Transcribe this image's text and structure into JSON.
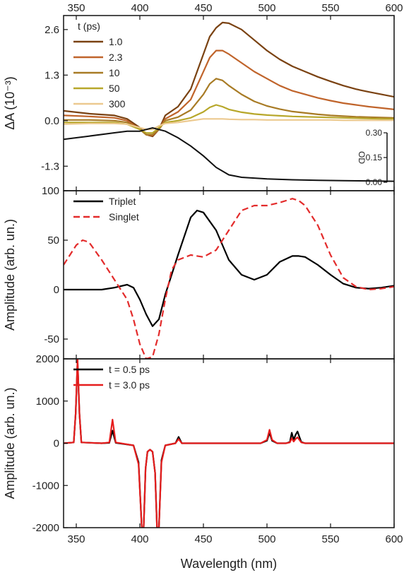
{
  "chart_data": [
    {
      "type": "line",
      "panel": "top",
      "xlabel": "Wavelength (nm)",
      "ylabel": "ΔA (10⁻³)",
      "xlim": [
        340,
        600
      ],
      "ylim": [
        -2.0,
        3.0
      ],
      "x_ticks": [
        350,
        400,
        450,
        500,
        550,
        600
      ],
      "y_ticks": [
        -1.3,
        0.0,
        1.3,
        2.6
      ],
      "y_tick_labels": [
        "-1.3",
        "0.0",
        "1.3",
        "2.6"
      ],
      "legend_title": "t (ps)",
      "legend_position": "top-left",
      "series": [
        {
          "name": "1.0",
          "color": "#7a4212",
          "x": [
            340,
            360,
            380,
            390,
            400,
            405,
            410,
            415,
            420,
            430,
            440,
            450,
            455,
            460,
            465,
            470,
            480,
            490,
            500,
            510,
            520,
            530,
            540,
            550,
            560,
            570,
            580,
            590,
            600
          ],
          "y": [
            0.28,
            0.2,
            0.15,
            0.05,
            -0.2,
            -0.4,
            -0.45,
            -0.25,
            0.15,
            0.4,
            0.9,
            1.9,
            2.4,
            2.65,
            2.8,
            2.78,
            2.6,
            2.3,
            2.0,
            1.75,
            1.55,
            1.4,
            1.25,
            1.12,
            1.0,
            0.9,
            0.82,
            0.75,
            0.68
          ]
        },
        {
          "name": "2.3",
          "color": "#c0642b",
          "x": [
            340,
            360,
            380,
            390,
            400,
            405,
            410,
            415,
            420,
            430,
            440,
            450,
            455,
            460,
            465,
            470,
            480,
            490,
            500,
            510,
            520,
            530,
            540,
            550,
            560,
            570,
            580,
            590,
            600
          ],
          "y": [
            0.15,
            0.12,
            0.08,
            0.0,
            -0.25,
            -0.4,
            -0.42,
            -0.25,
            0.05,
            0.25,
            0.6,
            1.4,
            1.8,
            2.0,
            2.0,
            1.9,
            1.65,
            1.4,
            1.2,
            1.0,
            0.85,
            0.75,
            0.65,
            0.57,
            0.5,
            0.45,
            0.4,
            0.36,
            0.32
          ]
        },
        {
          "name": "10",
          "color": "#a87b25",
          "x": [
            340,
            360,
            380,
            390,
            400,
            405,
            410,
            415,
            420,
            430,
            440,
            450,
            455,
            460,
            465,
            470,
            480,
            490,
            500,
            510,
            520,
            530,
            540,
            550,
            560,
            570,
            580,
            590,
            600
          ],
          "y": [
            0.02,
            0.02,
            0.0,
            -0.05,
            -0.25,
            -0.4,
            -0.4,
            -0.25,
            0.0,
            0.1,
            0.3,
            0.75,
            1.05,
            1.2,
            1.15,
            1.0,
            0.75,
            0.55,
            0.42,
            0.33,
            0.26,
            0.22,
            0.18,
            0.15,
            0.13,
            0.11,
            0.1,
            0.09,
            0.08
          ]
        },
        {
          "name": "50",
          "color": "#b7a72a",
          "x": [
            340,
            360,
            380,
            390,
            400,
            405,
            410,
            415,
            420,
            430,
            440,
            450,
            455,
            460,
            465,
            470,
            480,
            490,
            500,
            510,
            520,
            530,
            540,
            550,
            560,
            570,
            580,
            590,
            600
          ],
          "y": [
            -0.05,
            -0.05,
            -0.05,
            -0.1,
            -0.25,
            -0.35,
            -0.35,
            -0.2,
            -0.05,
            0.0,
            0.08,
            0.25,
            0.38,
            0.45,
            0.4,
            0.32,
            0.24,
            0.19,
            0.16,
            0.14,
            0.12,
            0.11,
            0.1,
            0.09,
            0.08,
            0.07,
            0.06,
            0.05,
            0.05
          ]
        },
        {
          "name": "300",
          "color": "#ecc98f",
          "x": [
            340,
            360,
            380,
            390,
            400,
            405,
            410,
            415,
            420,
            430,
            440,
            450,
            455,
            460,
            465,
            470,
            480,
            490,
            500,
            510,
            520,
            530,
            540,
            550,
            560,
            570,
            580,
            590,
            600
          ],
          "y": [
            -0.1,
            -0.08,
            -0.08,
            -0.1,
            -0.2,
            -0.25,
            -0.25,
            -0.15,
            -0.08,
            -0.05,
            0.0,
            0.05,
            0.05,
            0.05,
            0.05,
            0.04,
            0.03,
            0.03,
            0.02,
            0.02,
            0.02,
            0.02,
            0.02,
            0.02,
            0.01,
            0.01,
            0.01,
            0.01,
            0.01
          ]
        }
      ],
      "inset_od": {
        "ylabel": "OD",
        "y_ticks": [
          0.0,
          0.15,
          0.3
        ],
        "y_tick_labels": [
          "0.00",
          "0.15",
          "0.30"
        ],
        "ylim": [
          0.0,
          0.3
        ],
        "color": "#111111",
        "x": [
          340,
          360,
          380,
          390,
          400,
          405,
          410,
          420,
          430,
          440,
          450,
          460,
          470,
          480,
          500,
          520,
          540,
          560,
          580,
          600
        ],
        "y": [
          0.26,
          0.28,
          0.3,
          0.31,
          0.31,
          0.32,
          0.33,
          0.31,
          0.27,
          0.22,
          0.16,
          0.09,
          0.045,
          0.03,
          0.02,
          0.015,
          0.012,
          0.01,
          0.008,
          0.006
        ]
      }
    },
    {
      "type": "line",
      "panel": "middle",
      "xlabel": "Wavelength (nm)",
      "ylabel": "Amplitude (arb. un.)",
      "xlim": [
        340,
        600
      ],
      "ylim": [
        -70,
        100
      ],
      "y_ticks": [
        -50,
        0,
        50,
        100
      ],
      "y_tick_labels": [
        "-50",
        "0",
        "50",
        "100"
      ],
      "legend_position": "top-left",
      "series": [
        {
          "name": "Triplet",
          "color": "#000000",
          "dash": "solid",
          "x": [
            340,
            360,
            370,
            380,
            390,
            395,
            400,
            405,
            410,
            415,
            420,
            430,
            440,
            445,
            450,
            460,
            470,
            480,
            490,
            500,
            510,
            520,
            525,
            530,
            540,
            550,
            560,
            570,
            580,
            590,
            600
          ],
          "y": [
            0,
            0,
            0,
            2,
            5,
            2,
            -10,
            -25,
            -37,
            -30,
            -5,
            35,
            73,
            80,
            78,
            60,
            30,
            15,
            10,
            15,
            28,
            34,
            34,
            33,
            25,
            15,
            6,
            2,
            1,
            2,
            4
          ]
        },
        {
          "name": "Singlet",
          "color": "#e32b2b",
          "dash": "dash",
          "x": [
            340,
            345,
            350,
            355,
            360,
            370,
            380,
            390,
            395,
            400,
            405,
            410,
            415,
            420,
            425,
            430,
            440,
            450,
            460,
            470,
            480,
            490,
            500,
            510,
            520,
            525,
            530,
            540,
            550,
            560,
            570,
            580,
            590,
            600
          ],
          "y": [
            25,
            35,
            45,
            50,
            48,
            30,
            10,
            -10,
            -30,
            -55,
            -70,
            -68,
            -45,
            -10,
            20,
            30,
            35,
            33,
            40,
            60,
            80,
            85,
            85,
            88,
            92,
            90,
            85,
            65,
            35,
            12,
            3,
            0,
            1,
            3
          ]
        }
      ]
    },
    {
      "type": "line",
      "panel": "bottom",
      "xlabel": "Wavelength (nm)",
      "ylabel": "Amplitude (arb. un.)",
      "xlim": [
        340,
        600
      ],
      "ylim": [
        -2000,
        2000
      ],
      "y_ticks": [
        -2000,
        -1000,
        0,
        1000,
        2000
      ],
      "y_tick_labels": [
        "-2000",
        "-1000",
        "0",
        "1000",
        "2000"
      ],
      "legend_position": "top-left",
      "series": [
        {
          "name": "t = 0.5 ps",
          "color": "#000000",
          "x": [
            340,
            348,
            349.5,
            351,
            352.5,
            354,
            370,
            376,
            378.5,
            381,
            395,
            399,
            401.5,
            403,
            404.5,
            406,
            408,
            410,
            412,
            413.5,
            415,
            417,
            420,
            428,
            430.5,
            433,
            440,
            495,
            500,
            502,
            504,
            508,
            515,
            518,
            519.5,
            521,
            522.5,
            524,
            525.5,
            527,
            530,
            560,
            600
          ],
          "y": [
            0,
            20,
            700,
            1950,
            700,
            20,
            0,
            10,
            300,
            10,
            -50,
            -450,
            -2000,
            -2000,
            -600,
            -200,
            -150,
            -200,
            -700,
            -2000,
            -2000,
            -400,
            -50,
            0,
            150,
            0,
            0,
            0,
            60,
            250,
            60,
            0,
            0,
            30,
            250,
            80,
            200,
            280,
            150,
            30,
            0,
            0,
            0
          ]
        },
        {
          "name": "t = 3.0 ps",
          "color": "#e61d1d",
          "x": [
            340,
            348,
            349.5,
            351,
            352.5,
            354,
            370,
            376,
            378.5,
            381,
            395,
            399,
            401.5,
            403,
            404.5,
            406,
            408,
            410,
            412,
            413.5,
            415,
            417,
            420,
            428,
            430.5,
            433,
            440,
            495,
            500,
            502,
            504,
            508,
            515,
            518,
            519.5,
            521,
            522.5,
            524,
            525.5,
            527,
            530,
            560,
            600
          ],
          "y": [
            0,
            20,
            700,
            2000,
            700,
            20,
            0,
            20,
            560,
            20,
            -50,
            -500,
            -2000,
            -2000,
            -600,
            -200,
            -150,
            -200,
            -700,
            -2000,
            -2000,
            -450,
            -50,
            0,
            100,
            0,
            0,
            0,
            80,
            320,
            80,
            0,
            0,
            20,
            120,
            40,
            100,
            140,
            80,
            20,
            0,
            0,
            0
          ]
        }
      ]
    }
  ]
}
